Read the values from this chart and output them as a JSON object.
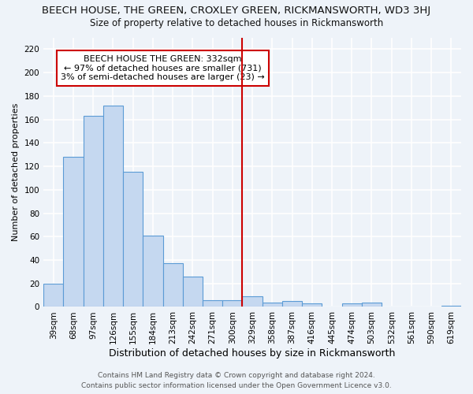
{
  "title": "BEECH HOUSE, THE GREEN, CROXLEY GREEN, RICKMANSWORTH, WD3 3HJ",
  "subtitle": "Size of property relative to detached houses in Rickmansworth",
  "xlabel": "Distribution of detached houses by size in Rickmansworth",
  "ylabel": "Number of detached properties",
  "categories": [
    "39sqm",
    "68sqm",
    "97sqm",
    "126sqm",
    "155sqm",
    "184sqm",
    "213sqm",
    "242sqm",
    "271sqm",
    "300sqm",
    "329sqm",
    "358sqm",
    "387sqm",
    "416sqm",
    "445sqm",
    "474sqm",
    "503sqm",
    "532sqm",
    "561sqm",
    "590sqm",
    "619sqm"
  ],
  "values": [
    20,
    128,
    163,
    172,
    115,
    61,
    37,
    26,
    6,
    6,
    9,
    4,
    5,
    3,
    0,
    3,
    4,
    0,
    0,
    0,
    1
  ],
  "bar_color": "#c5d8f0",
  "bar_edge_color": "#5b9bd5",
  "vline_color": "#cc0000",
  "annotation_text": "BEECH HOUSE THE GREEN: 332sqm\n← 97% of detached houses are smaller (731)\n3% of semi-detached houses are larger (23) →",
  "annotation_box_color": "#ffffff",
  "annotation_box_edge_color": "#cc0000",
  "ylim": [
    0,
    230
  ],
  "yticks": [
    0,
    20,
    40,
    60,
    80,
    100,
    120,
    140,
    160,
    180,
    200,
    220
  ],
  "background_color": "#eef3f9",
  "grid_color": "#ffffff",
  "footer_line1": "Contains HM Land Registry data © Crown copyright and database right 2024.",
  "footer_line2": "Contains public sector information licensed under the Open Government Licence v3.0.",
  "title_fontsize": 9.5,
  "subtitle_fontsize": 8.5,
  "xlabel_fontsize": 9,
  "ylabel_fontsize": 8,
  "tick_fontsize": 7.5,
  "annotation_fontsize": 8,
  "footer_fontsize": 6.5
}
